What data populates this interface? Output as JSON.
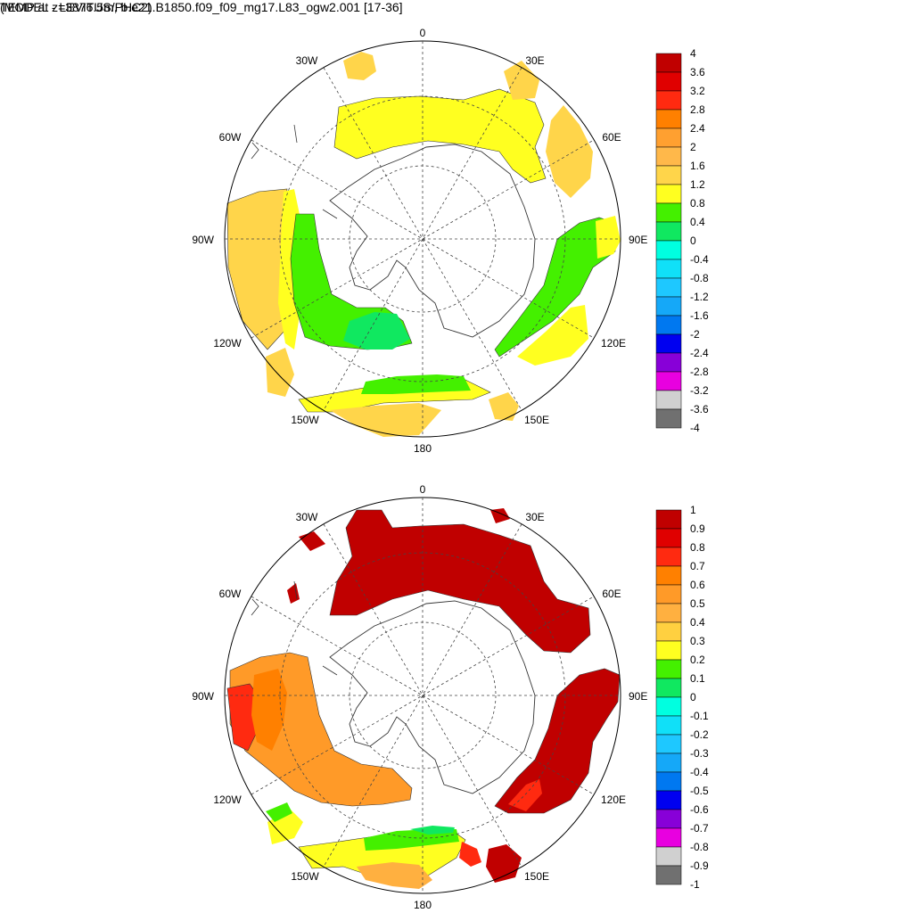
{
  "panel1": {
    "title": "TEMP at z=3876.5m, b.e21.B1850.f09_f09_mg17.L83_ogw2.001 [17-36]",
    "lon_labels": [
      "0",
      "30E",
      "60E",
      "90E",
      "120E",
      "150E",
      "180",
      "150W",
      "120W",
      "90W",
      "60W",
      "30W"
    ],
    "colorbar": {
      "labels": [
        "4",
        "3.6",
        "3.2",
        "2.8",
        "2.4",
        "2",
        "1.6",
        "1.2",
        "0.8",
        "0.4",
        "0",
        "-0.4",
        "-0.8",
        "-1.2",
        "-1.6",
        "-2",
        "-2.4",
        "-2.8",
        "-3.2",
        "-3.6",
        "-4"
      ],
      "colors": [
        "#c00000",
        "#e00000",
        "#ff2a10",
        "#ff8000",
        "#ffa030",
        "#ffb84a",
        "#ffd54a",
        "#ffff20",
        "#44f000",
        "#10e860",
        "#00ffe0",
        "#10e0f8",
        "#1ec8ff",
        "#15a8f8",
        "#0078f0",
        "#0000f0",
        "#8800d8",
        "#e800e0",
        "#d0d0d0",
        "#707070"
      ]
    }
  },
  "panel2": {
    "title": "(MODEL - LEVITUS/PHC2)",
    "lon_labels": [
      "0",
      "30E",
      "60E",
      "90E",
      "120E",
      "150E",
      "180",
      "150W",
      "120W",
      "90W",
      "60W",
      "30W"
    ],
    "colorbar": {
      "labels": [
        "1",
        "0.9",
        "0.8",
        "0.7",
        "0.6",
        "0.5",
        "0.4",
        "0.3",
        "0.2",
        "0.1",
        "0",
        "-0.1",
        "-0.2",
        "-0.3",
        "-0.4",
        "-0.5",
        "-0.6",
        "-0.7",
        "-0.8",
        "-0.9",
        "-1"
      ],
      "colors": [
        "#c00000",
        "#e00000",
        "#ff2a10",
        "#ff8000",
        "#ff9a28",
        "#ffb040",
        "#ffd040",
        "#ffff20",
        "#44f000",
        "#10e860",
        "#00ffe0",
        "#10e0f8",
        "#1ec8ff",
        "#15a8f8",
        "#0078f0",
        "#0000f0",
        "#8800d8",
        "#e800e0",
        "#d0d0d0",
        "#707070"
      ]
    }
  }
}
